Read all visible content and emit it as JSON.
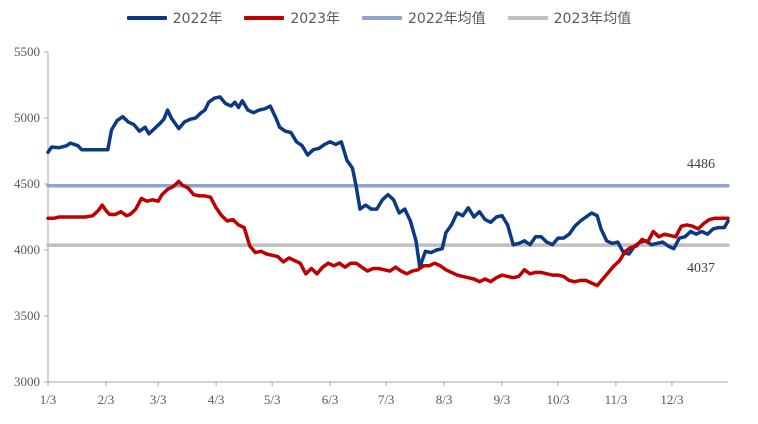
{
  "chart_data": {
    "type": "line",
    "title": "",
    "xlabel": "",
    "ylabel": "",
    "ylim": [
      3000,
      5500
    ],
    "yticks": [
      3000,
      3500,
      4000,
      4500,
      5000,
      5500
    ],
    "xlim": [
      0,
      364
    ],
    "xticks": [
      {
        "label": "1/3",
        "day": 0
      },
      {
        "label": "2/3",
        "day": 31
      },
      {
        "label": "3/3",
        "day": 59
      },
      {
        "label": "4/3",
        "day": 90
      },
      {
        "label": "5/3",
        "day": 120
      },
      {
        "label": "6/3",
        "day": 151
      },
      {
        "label": "7/3",
        "day": 181
      },
      {
        "label": "8/3",
        "day": 212
      },
      {
        "label": "9/3",
        "day": 243
      },
      {
        "label": "10/3",
        "day": 273
      },
      {
        "label": "11/3",
        "day": 304
      },
      {
        "label": "12/3",
        "day": 334
      }
    ],
    "grid": false,
    "legend_position": "top-center",
    "series": [
      {
        "name": "2022年",
        "color": "#0B3A82",
        "points": [
          [
            0,
            4740
          ],
          [
            2,
            4780
          ],
          [
            6,
            4775
          ],
          [
            10,
            4790
          ],
          [
            12,
            4810
          ],
          [
            16,
            4790
          ],
          [
            18,
            4760
          ],
          [
            22,
            4760
          ],
          [
            26,
            4760
          ],
          [
            30,
            4760
          ],
          [
            32,
            4760
          ],
          [
            34,
            4910
          ],
          [
            37,
            4980
          ],
          [
            40,
            5010
          ],
          [
            43,
            4970
          ],
          [
            46,
            4950
          ],
          [
            49,
            4900
          ],
          [
            52,
            4930
          ],
          [
            54,
            4880
          ],
          [
            57,
            4920
          ],
          [
            60,
            4960
          ],
          [
            62,
            4990
          ],
          [
            64,
            5060
          ],
          [
            66,
            5000
          ],
          [
            68,
            4960
          ],
          [
            70,
            4920
          ],
          [
            73,
            4970
          ],
          [
            76,
            4990
          ],
          [
            79,
            5000
          ],
          [
            82,
            5040
          ],
          [
            84,
            5060
          ],
          [
            86,
            5120
          ],
          [
            89,
            5150
          ],
          [
            92,
            5160
          ],
          [
            95,
            5110
          ],
          [
            98,
            5090
          ],
          [
            100,
            5120
          ],
          [
            102,
            5080
          ],
          [
            104,
            5130
          ],
          [
            107,
            5060
          ],
          [
            110,
            5040
          ],
          [
            113,
            5060
          ],
          [
            116,
            5070
          ],
          [
            119,
            5090
          ],
          [
            122,
            5000
          ],
          [
            124,
            4930
          ],
          [
            127,
            4900
          ],
          [
            130,
            4890
          ],
          [
            133,
            4820
          ],
          [
            136,
            4790
          ],
          [
            139,
            4720
          ],
          [
            142,
            4760
          ],
          [
            145,
            4770
          ],
          [
            148,
            4800
          ],
          [
            151,
            4820
          ],
          [
            154,
            4800
          ],
          [
            157,
            4820
          ],
          [
            160,
            4680
          ],
          [
            163,
            4620
          ],
          [
            165,
            4480
          ],
          [
            167,
            4310
          ],
          [
            170,
            4340
          ],
          [
            173,
            4310
          ],
          [
            176,
            4310
          ],
          [
            179,
            4380
          ],
          [
            182,
            4420
          ],
          [
            185,
            4380
          ],
          [
            188,
            4280
          ],
          [
            191,
            4310
          ],
          [
            194,
            4220
          ],
          [
            197,
            4070
          ],
          [
            199,
            3870
          ],
          [
            202,
            3990
          ],
          [
            205,
            3980
          ],
          [
            208,
            4000
          ],
          [
            211,
            4010
          ],
          [
            213,
            4130
          ],
          [
            216,
            4190
          ],
          [
            219,
            4280
          ],
          [
            222,
            4260
          ],
          [
            225,
            4320
          ],
          [
            228,
            4250
          ],
          [
            231,
            4290
          ],
          [
            234,
            4230
          ],
          [
            237,
            4210
          ],
          [
            240,
            4250
          ],
          [
            243,
            4260
          ],
          [
            246,
            4190
          ],
          [
            249,
            4040
          ],
          [
            252,
            4050
          ],
          [
            255,
            4070
          ],
          [
            258,
            4040
          ],
          [
            261,
            4100
          ],
          [
            264,
            4100
          ],
          [
            267,
            4060
          ],
          [
            270,
            4040
          ],
          [
            273,
            4090
          ],
          [
            276,
            4090
          ],
          [
            279,
            4120
          ],
          [
            282,
            4180
          ],
          [
            285,
            4220
          ],
          [
            288,
            4250
          ],
          [
            291,
            4280
          ],
          [
            294,
            4260
          ],
          [
            296,
            4160
          ],
          [
            299,
            4070
          ],
          [
            302,
            4050
          ],
          [
            305,
            4060
          ],
          [
            308,
            3980
          ],
          [
            311,
            3970
          ],
          [
            314,
            4030
          ],
          [
            317,
            4060
          ],
          [
            320,
            4070
          ],
          [
            323,
            4040
          ],
          [
            326,
            4050
          ],
          [
            329,
            4060
          ],
          [
            332,
            4030
          ],
          [
            335,
            4010
          ],
          [
            338,
            4090
          ],
          [
            341,
            4100
          ],
          [
            344,
            4140
          ],
          [
            347,
            4120
          ],
          [
            350,
            4140
          ],
          [
            353,
            4120
          ],
          [
            356,
            4160
          ],
          [
            359,
            4170
          ],
          [
            362,
            4170
          ],
          [
            364,
            4220
          ]
        ]
      },
      {
        "name": "2023年",
        "color": "#C00000",
        "points": [
          [
            0,
            4240
          ],
          [
            3,
            4240
          ],
          [
            6,
            4250
          ],
          [
            9,
            4250
          ],
          [
            12,
            4250
          ],
          [
            16,
            4250
          ],
          [
            20,
            4250
          ],
          [
            24,
            4260
          ],
          [
            27,
            4300
          ],
          [
            29,
            4340
          ],
          [
            31,
            4300
          ],
          [
            33,
            4270
          ],
          [
            36,
            4270
          ],
          [
            39,
            4290
          ],
          [
            42,
            4260
          ],
          [
            44,
            4270
          ],
          [
            47,
            4310
          ],
          [
            50,
            4390
          ],
          [
            53,
            4370
          ],
          [
            56,
            4380
          ],
          [
            59,
            4370
          ],
          [
            61,
            4420
          ],
          [
            64,
            4460
          ],
          [
            67,
            4480
          ],
          [
            70,
            4520
          ],
          [
            72,
            4490
          ],
          [
            75,
            4470
          ],
          [
            78,
            4420
          ],
          [
            81,
            4410
          ],
          [
            84,
            4410
          ],
          [
            87,
            4400
          ],
          [
            90,
            4320
          ],
          [
            93,
            4260
          ],
          [
            96,
            4220
          ],
          [
            99,
            4230
          ],
          [
            102,
            4190
          ],
          [
            105,
            4170
          ],
          [
            108,
            4030
          ],
          [
            111,
            3980
          ],
          [
            114,
            3990
          ],
          [
            117,
            3970
          ],
          [
            120,
            3960
          ],
          [
            123,
            3950
          ],
          [
            126,
            3910
          ],
          [
            129,
            3940
          ],
          [
            132,
            3920
          ],
          [
            135,
            3900
          ],
          [
            138,
            3820
          ],
          [
            141,
            3860
          ],
          [
            144,
            3820
          ],
          [
            147,
            3870
          ],
          [
            150,
            3900
          ],
          [
            153,
            3880
          ],
          [
            156,
            3900
          ],
          [
            159,
            3870
          ],
          [
            162,
            3900
          ],
          [
            165,
            3900
          ],
          [
            168,
            3870
          ],
          [
            171,
            3840
          ],
          [
            174,
            3860
          ],
          [
            177,
            3860
          ],
          [
            180,
            3850
          ],
          [
            183,
            3840
          ],
          [
            186,
            3870
          ],
          [
            189,
            3840
          ],
          [
            192,
            3820
          ],
          [
            195,
            3840
          ],
          [
            198,
            3850
          ],
          [
            201,
            3880
          ],
          [
            204,
            3880
          ],
          [
            207,
            3900
          ],
          [
            210,
            3880
          ],
          [
            213,
            3850
          ],
          [
            216,
            3830
          ],
          [
            219,
            3810
          ],
          [
            222,
            3800
          ],
          [
            225,
            3790
          ],
          [
            228,
            3780
          ],
          [
            231,
            3760
          ],
          [
            234,
            3780
          ],
          [
            237,
            3760
          ],
          [
            240,
            3790
          ],
          [
            243,
            3810
          ],
          [
            246,
            3800
          ],
          [
            249,
            3790
          ],
          [
            252,
            3800
          ],
          [
            255,
            3850
          ],
          [
            258,
            3820
          ],
          [
            261,
            3830
          ],
          [
            264,
            3830
          ],
          [
            267,
            3820
          ],
          [
            270,
            3810
          ],
          [
            273,
            3810
          ],
          [
            276,
            3800
          ],
          [
            279,
            3770
          ],
          [
            282,
            3760
          ],
          [
            285,
            3770
          ],
          [
            288,
            3770
          ],
          [
            291,
            3750
          ],
          [
            294,
            3730
          ],
          [
            297,
            3780
          ],
          [
            300,
            3830
          ],
          [
            303,
            3880
          ],
          [
            306,
            3920
          ],
          [
            309,
            3990
          ],
          [
            312,
            4020
          ],
          [
            315,
            4030
          ],
          [
            318,
            4080
          ],
          [
            321,
            4060
          ],
          [
            324,
            4140
          ],
          [
            327,
            4100
          ],
          [
            330,
            4120
          ],
          [
            333,
            4110
          ],
          [
            336,
            4100
          ],
          [
            339,
            4180
          ],
          [
            342,
            4190
          ],
          [
            345,
            4180
          ],
          [
            348,
            4160
          ],
          [
            351,
            4200
          ],
          [
            354,
            4230
          ],
          [
            357,
            4240
          ],
          [
            360,
            4240
          ],
          [
            364,
            4240
          ]
        ]
      },
      {
        "name": "2022年均值",
        "color": "#8EA3CF",
        "mean": 4486,
        "points": [
          [
            0,
            4486
          ],
          [
            364,
            4486
          ]
        ]
      },
      {
        "name": "2023年均值",
        "color": "#BFBFBF",
        "mean": 4037,
        "points": [
          [
            0,
            4037
          ],
          [
            364,
            4037
          ]
        ]
      }
    ],
    "annotations": [
      "4486",
      "4037"
    ]
  }
}
